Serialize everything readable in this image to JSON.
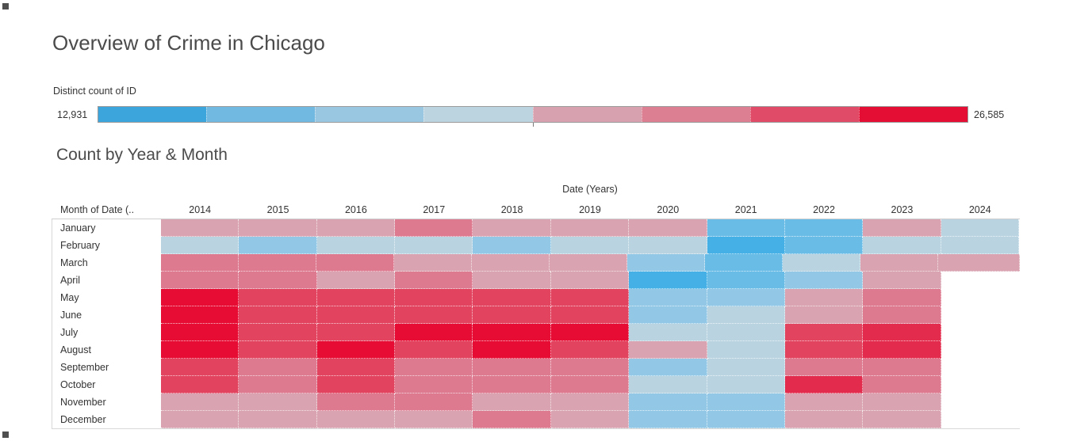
{
  "header": {
    "title": "Overview of Crime in Chicago"
  },
  "legend": {
    "label": "Distinct count of ID",
    "min": "12,931",
    "max": "26,585",
    "segment_colors": [
      "#3ca6dc",
      "#72b9e1",
      "#99c7e2",
      "#bcd4e0",
      "#d8a1b0",
      "#dc7f93",
      "#e04b68",
      "#e40e34"
    ]
  },
  "chart_data": {
    "type": "heatmap",
    "title": "Count by Year & Month",
    "col_axis_label": "Date (Years)",
    "row_header_label": "Month of Date (..",
    "x_categories_years": [
      "2014",
      "2015",
      "2016",
      "2017",
      "2018",
      "2019",
      "2020",
      "2021",
      "2022",
      "2023",
      "2024"
    ],
    "y_categories_months": [
      "January",
      "February",
      "March",
      "April",
      "May",
      "June",
      "July",
      "August",
      "September",
      "October",
      "November",
      "December"
    ],
    "value_scale": {
      "min": 12931,
      "max": 26585,
      "encoding": "diverging: blue = low count, red = high count"
    },
    "palette": {
      "b1": "#44b0e6",
      "b2": "#69bce6",
      "b3": "#92c7e5",
      "b4": "#b9d3e1",
      "p2": "#d9a3b2",
      "p3": "#de7a90",
      "p4": "#e2435f",
      "r1": "#e32b4e",
      "r0": "#e60c34"
    },
    "cells": [
      {
        "month": "January",
        "levels": [
          "p2",
          "p2",
          "p2",
          "p3",
          "p2",
          "p2",
          "p2",
          "b2",
          "b2",
          "p2",
          "b4"
        ]
      },
      {
        "month": "February",
        "levels": [
          "b4",
          "b3",
          "b4",
          "b4",
          "b3",
          "b4",
          "b4",
          "b1",
          "b2",
          "b4",
          "b4"
        ]
      },
      {
        "month": "March",
        "levels": [
          "p3",
          "p3",
          "p3",
          "p2",
          "p2",
          "p2",
          "b3",
          "b2",
          "b4",
          "p2",
          "p2"
        ]
      },
      {
        "month": "April",
        "levels": [
          "p3",
          "p3",
          "p2",
          "p3",
          "p2",
          "p2",
          "b1",
          "b2",
          "b3",
          "p2",
          null
        ]
      },
      {
        "month": "May",
        "levels": [
          "r0",
          "p4",
          "p4",
          "p4",
          "p4",
          "p4",
          "b3",
          "b3",
          "p2",
          "p3",
          null
        ]
      },
      {
        "month": "June",
        "levels": [
          "r0",
          "p4",
          "p4",
          "p4",
          "p4",
          "p4",
          "b3",
          "b4",
          "p2",
          "p3",
          null
        ]
      },
      {
        "month": "July",
        "levels": [
          "r0",
          "p4",
          "p4",
          "r0",
          "r0",
          "r0",
          "b4",
          "b4",
          "p4",
          "r1",
          null
        ]
      },
      {
        "month": "August",
        "levels": [
          "r0",
          "p4",
          "r0",
          "p4",
          "r0",
          "p4",
          "p2",
          "b4",
          "p4",
          "r1",
          null
        ]
      },
      {
        "month": "September",
        "levels": [
          "p4",
          "p3",
          "p4",
          "p3",
          "p3",
          "p3",
          "b3",
          "b4",
          "p3",
          "p3",
          null
        ]
      },
      {
        "month": "October",
        "levels": [
          "p4",
          "p3",
          "p4",
          "p3",
          "p3",
          "p3",
          "b4",
          "b4",
          "r1",
          "p3",
          null
        ]
      },
      {
        "month": "November",
        "levels": [
          "p2",
          "p2",
          "p3",
          "p3",
          "p2",
          "p2",
          "b3",
          "b3",
          "p2",
          "p2",
          null
        ]
      },
      {
        "month": "December",
        "levels": [
          "p2",
          "p2",
          "p2",
          "p2",
          "p3",
          "p2",
          "b3",
          "b3",
          "p2",
          "p2",
          null
        ]
      }
    ]
  }
}
